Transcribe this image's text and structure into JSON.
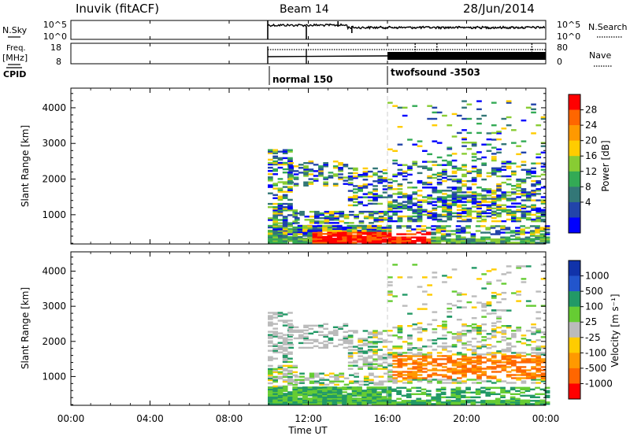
{
  "header": {
    "station": "Inuvik (fitACF)",
    "beam": "Beam 14",
    "date": "28/Jun/2014"
  },
  "time_axis": {
    "xlabel": "Time UT",
    "ticks": [
      "00:00",
      "04:00",
      "08:00",
      "12:00",
      "16:00",
      "20:00",
      "00:00"
    ],
    "tick_hours": [
      0,
      4,
      8,
      12,
      16,
      20,
      24
    ],
    "range_hours": [
      0,
      24
    ]
  },
  "panels": {
    "nsky": {
      "left_label": "N.Sky",
      "left_ticks": [
        "10^5",
        "10^0"
      ],
      "right_ticks": [
        "10^5",
        "10^0"
      ],
      "right_label": "N.Search"
    },
    "freq": {
      "left_label_1": "Freq.",
      "left_label_2": "[MHz]",
      "left_ticks": [
        "18",
        "8"
      ],
      "right_ticks": [
        "80",
        "0"
      ],
      "right_label": "Nave"
    },
    "cpid": {
      "label": "CPID",
      "modes": [
        {
          "label": "normal 150",
          "start_hour": 9.95
        },
        {
          "label": "twofsound -3503",
          "start_hour": 16.0
        }
      ]
    }
  },
  "chart_data": [
    {
      "type": "heatmap",
      "name": "power",
      "ylabel": "Slant Range [km]",
      "ylim": [
        180,
        4550
      ],
      "yticks": [
        1000,
        2000,
        3000,
        4000
      ],
      "colorbar": {
        "label": "Power [dB]",
        "ticks": [
          "28",
          "24",
          "20",
          "16",
          "12",
          "8",
          "4"
        ],
        "colors": [
          "#ff0000",
          "#ff6600",
          "#ff9900",
          "#ffcc00",
          "#88cc33",
          "#33aa55",
          "#337777",
          "#2244aa",
          "#0000ff"
        ]
      },
      "data_start_hour": 9.95
    },
    {
      "type": "heatmap",
      "name": "velocity",
      "ylabel": "Slant Range [km]",
      "ylim": [
        180,
        4550
      ],
      "yticks": [
        1000,
        2000,
        3000,
        4000
      ],
      "colorbar": {
        "label": "Velocity [m s⁻¹]",
        "ticks": [
          "1000",
          "500",
          "100",
          "25",
          "-25",
          "-100",
          "-500",
          "-1000"
        ],
        "colors": [
          "#1133aa",
          "#2255cc",
          "#229966",
          "#66cc33",
          "#bbbbbb",
          "#ffcc00",
          "#ff9900",
          "#ff6600",
          "#ff0000"
        ]
      },
      "data_start_hour": 9.95
    }
  ]
}
